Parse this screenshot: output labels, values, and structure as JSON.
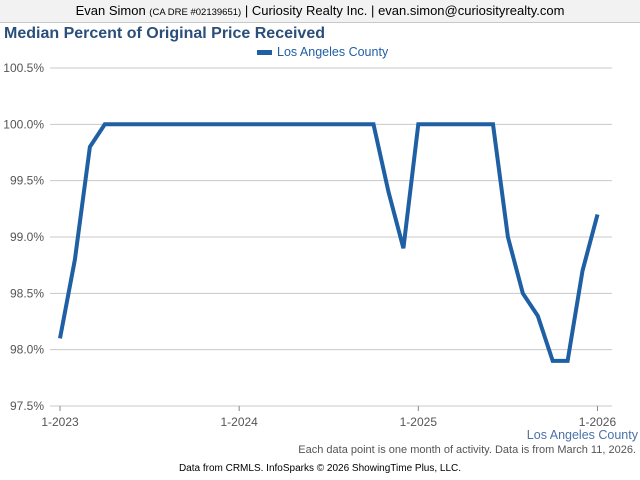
{
  "header": {
    "agent_name": "Evan Simon",
    "license": "(CA DRE #02139651)",
    "separator": "|",
    "company": "Curiosity Realty Inc.",
    "email": "evan.simon@curiosityrealty.com"
  },
  "chart_data": {
    "type": "line",
    "title": "Median Percent of Original Price Received",
    "xlabel": "",
    "ylabel": "",
    "ylim": [
      97.5,
      100.5
    ],
    "yticks": [
      "97.5%",
      "98.0%",
      "98.5%",
      "99.0%",
      "99.5%",
      "100.0%",
      "100.5%"
    ],
    "xticks": [
      "1-2023",
      "1-2024",
      "1-2025",
      "1-2026"
    ],
    "grid": true,
    "legend_position": "top-center",
    "x": [
      "2023-01",
      "2023-02",
      "2023-03",
      "2023-04",
      "2023-05",
      "2023-06",
      "2023-07",
      "2023-08",
      "2023-09",
      "2023-10",
      "2023-11",
      "2023-12",
      "2024-01",
      "2024-02",
      "2024-03",
      "2024-04",
      "2024-05",
      "2024-06",
      "2024-07",
      "2024-08",
      "2024-09",
      "2024-10",
      "2024-11",
      "2024-12",
      "2025-01",
      "2025-02",
      "2025-03",
      "2025-04",
      "2025-05",
      "2025-06",
      "2025-07",
      "2025-08",
      "2025-09",
      "2025-10",
      "2025-11",
      "2025-12",
      "2026-01",
      "2026-02"
    ],
    "series": [
      {
        "name": "Los Angeles County",
        "color": "#1f5fa3",
        "values": [
          98.1,
          98.8,
          99.8,
          100.0,
          100.0,
          100.0,
          100.0,
          100.0,
          100.0,
          100.0,
          100.0,
          100.0,
          100.0,
          100.0,
          100.0,
          100.0,
          100.0,
          100.0,
          100.0,
          100.0,
          100.0,
          100.0,
          99.4,
          98.9,
          100.0,
          100.0,
          100.0,
          100.0,
          100.0,
          100.0,
          99.0,
          98.5,
          98.3,
          97.9,
          97.9,
          98.7,
          99.2,
          null
        ]
      }
    ]
  },
  "footer": {
    "series_label": "Los Angeles County",
    "note": "Each data point is one month of activity. Data is from March 11, 2026.",
    "credit": "Data from CRMLS. InfoSparks © 2026 ShowingTime Plus, LLC."
  }
}
